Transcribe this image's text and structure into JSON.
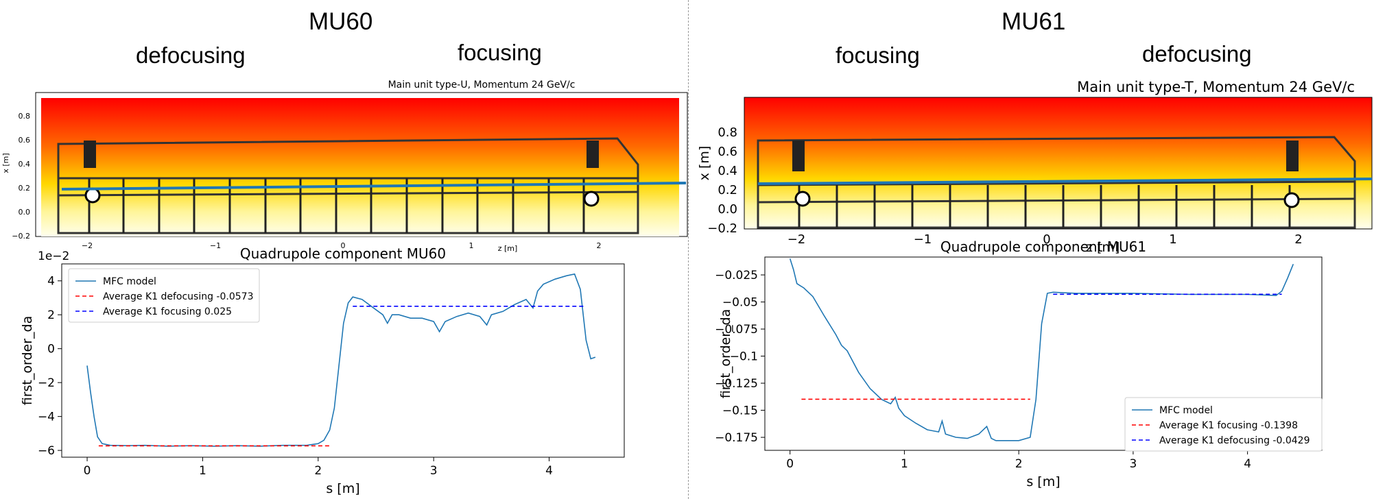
{
  "left": {
    "title": "MU60",
    "label_a": "defocusing",
    "label_b": "focusing",
    "field_map": {
      "title": "Main unit type-U, Momentum 24 GeV/c",
      "xlabel": "z [m]",
      "ylabel": "x [m]",
      "xticks": [
        "−2",
        "−1",
        "0",
        "1",
        "2"
      ],
      "yticks": [
        "−0.2",
        "0.0",
        "0.2",
        "0.4",
        "0.6",
        "0.8"
      ]
    }
  },
  "right": {
    "title": "MU61",
    "label_a": "focusing",
    "label_b": "defocusing",
    "field_map": {
      "title": "Main unit type-T, Momentum 24 GeV/c",
      "xlabel": "z [m]",
      "ylabel": "x [m]",
      "xticks": [
        "−2",
        "−1",
        "0",
        "1",
        "2"
      ],
      "yticks": [
        "−0.2",
        "0.0",
        "0.2",
        "0.4",
        "0.6",
        "0.8"
      ]
    }
  },
  "colors": {
    "mfc": "#1f77b4",
    "avg_a": "#ff0000",
    "avg_b": "#0000ff",
    "field_hot": "#ff0000",
    "field_mid": "#ffd700",
    "field_cold": "#ffffee"
  },
  "chart_data": [
    {
      "type": "line",
      "title": "Quadrupole component MU60",
      "xlabel": "s [m]",
      "ylabel": "first_order_da",
      "offset_label": "1e−2",
      "xlim": [
        -0.22,
        4.65
      ],
      "ylim": [
        -6.4,
        5.0
      ],
      "xticks": [
        0,
        1,
        2,
        3,
        4
      ],
      "yticks": [
        -6,
        -4,
        -2,
        0,
        2,
        4
      ],
      "legend_position": "upper left",
      "legend": [
        "MFC model",
        "Average K1 defocusing -0.0573",
        "Average K1 focusing 0.025"
      ],
      "series": [
        {
          "name": "MFC model",
          "x": [
            0,
            0.03,
            0.06,
            0.09,
            0.13,
            0.2,
            0.35,
            0.5,
            0.7,
            0.9,
            1.1,
            1.3,
            1.5,
            1.7,
            1.9,
            2.0,
            2.05,
            2.1,
            2.14,
            2.18,
            2.22,
            2.26,
            2.3,
            2.38,
            2.48,
            2.56,
            2.6,
            2.64,
            2.7,
            2.8,
            2.9,
            3.0,
            3.05,
            3.1,
            3.2,
            3.3,
            3.4,
            3.46,
            3.5,
            3.6,
            3.7,
            3.8,
            3.86,
            3.9,
            3.95,
            4.05,
            4.15,
            4.22,
            4.27,
            4.32,
            4.36,
            4.4
          ],
          "y": [
            -1.0,
            -2.6,
            -4.0,
            -5.2,
            -5.6,
            -5.7,
            -5.72,
            -5.7,
            -5.75,
            -5.72,
            -5.75,
            -5.72,
            -5.75,
            -5.7,
            -5.7,
            -5.6,
            -5.4,
            -4.8,
            -3.5,
            -1.0,
            1.5,
            2.7,
            3.05,
            2.9,
            2.4,
            2.0,
            1.5,
            2.0,
            2.0,
            1.8,
            1.8,
            1.6,
            1.0,
            1.6,
            1.9,
            2.1,
            1.9,
            1.4,
            2.0,
            2.2,
            2.6,
            2.9,
            2.4,
            3.4,
            3.8,
            4.1,
            4.3,
            4.4,
            3.5,
            0.5,
            -0.6,
            -0.5
          ]
        },
        {
          "name": "Average K1 defocusing -0.0573",
          "x": [
            0.1,
            2.1
          ],
          "y": [
            -5.73,
            -5.73
          ]
        },
        {
          "name": "Average K1 focusing 0.025",
          "x": [
            2.3,
            4.3
          ],
          "y": [
            2.5,
            2.5
          ]
        }
      ]
    },
    {
      "type": "line",
      "title": "Quadrupole component MU61",
      "xlabel": "s [m]",
      "ylabel": "first_order_da",
      "xlim": [
        -0.22,
        4.65
      ],
      "ylim": [
        -0.187,
        -0.0085
      ],
      "xticks": [
        0,
        1,
        2,
        3,
        4
      ],
      "yticks": [
        -0.175,
        -0.15,
        -0.125,
        -0.1,
        -0.075,
        -0.05,
        -0.025
      ],
      "legend_position": "lower right",
      "legend": [
        "MFC model",
        "Average K1 focusing -0.1398",
        "Average K1 defocusing -0.0429"
      ],
      "series": [
        {
          "name": "MFC model",
          "x": [
            0,
            0.03,
            0.06,
            0.09,
            0.12,
            0.2,
            0.3,
            0.4,
            0.45,
            0.5,
            0.6,
            0.7,
            0.8,
            0.88,
            0.92,
            0.95,
            1.0,
            1.1,
            1.2,
            1.3,
            1.33,
            1.36,
            1.45,
            1.55,
            1.65,
            1.72,
            1.76,
            1.8,
            1.9,
            2.0,
            2.1,
            2.15,
            2.2,
            2.25,
            2.3,
            2.5,
            3.0,
            3.5,
            4.0,
            4.25,
            4.3,
            4.35,
            4.4
          ],
          "y": [
            -0.01,
            -0.02,
            -0.033,
            -0.035,
            -0.037,
            -0.045,
            -0.063,
            -0.08,
            -0.09,
            -0.095,
            -0.115,
            -0.13,
            -0.14,
            -0.144,
            -0.138,
            -0.148,
            -0.155,
            -0.162,
            -0.168,
            -0.17,
            -0.16,
            -0.172,
            -0.175,
            -0.176,
            -0.172,
            -0.165,
            -0.176,
            -0.178,
            -0.178,
            -0.178,
            -0.175,
            -0.14,
            -0.07,
            -0.042,
            -0.041,
            -0.042,
            -0.042,
            -0.043,
            -0.043,
            -0.044,
            -0.04,
            -0.028,
            -0.015
          ]
        },
        {
          "name": "Average K1 focusing -0.1398",
          "x": [
            0.1,
            2.1
          ],
          "y": [
            -0.1398,
            -0.1398
          ]
        },
        {
          "name": "Average K1 defocusing -0.0429",
          "x": [
            2.3,
            4.3
          ],
          "y": [
            -0.0429,
            -0.0429
          ]
        }
      ]
    }
  ]
}
